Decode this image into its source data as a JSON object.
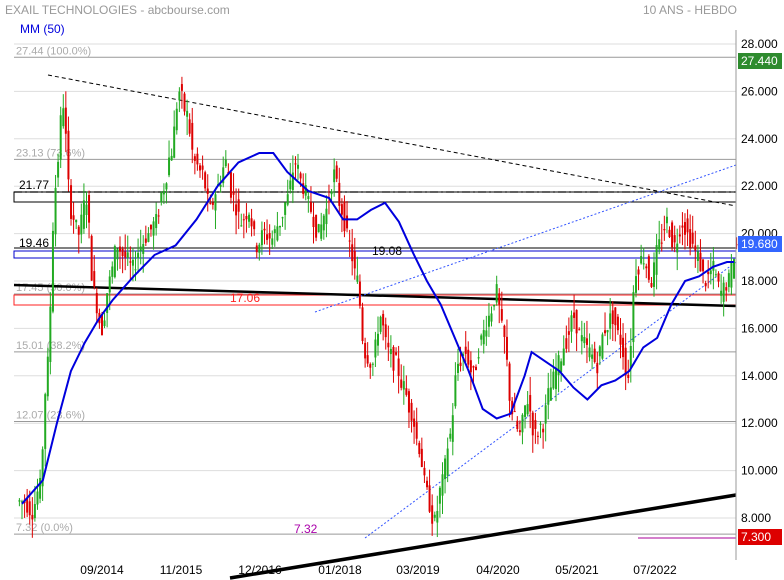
{
  "header": {
    "title": "EXAIL TECHNOLOGIES - abcbourse.com",
    "period": "10 ANS - HEBDO"
  },
  "indicator": {
    "label": "MM (50)"
  },
  "chart_data": {
    "type": "candlestick",
    "y_axis": {
      "ticks": [
        "28.000",
        "26.000",
        "24.000",
        "22.000",
        "20.000",
        "18.000",
        "16.000",
        "14.000",
        "12.000",
        "10.000",
        "8.000"
      ],
      "range": [
        7.2,
        28.6
      ]
    },
    "x_axis": {
      "ticks": [
        "09/2014",
        "11/2015",
        "12/2016",
        "01/2018",
        "03/2019",
        "04/2020",
        "05/2021",
        "07/2022"
      ]
    },
    "fibonacci_levels": [
      {
        "label": "27.44 (100.0%)",
        "value": 27.44
      },
      {
        "label": "23.13 (73.6%)",
        "value": 23.13
      },
      {
        "label": "17.45 (50.0%)",
        "value": 17.45
      },
      {
        "label": "15.01 (38.2%)",
        "value": 15.01
      },
      {
        "label": "12.07 (23.6%)",
        "value": 12.07
      },
      {
        "label": "7.32 (0.0%)",
        "value": 7.32
      }
    ],
    "horizontal_levels": [
      {
        "label": "21.77",
        "value": 21.77
      },
      {
        "label": "19.46",
        "value": 19.46
      },
      {
        "label": "19.08",
        "value": 19.08
      },
      {
        "label": "17.06",
        "value": 17.06
      },
      {
        "label": "7.32",
        "value": 7.32
      }
    ],
    "price_badges": [
      {
        "label": "27.440",
        "value": 27.44,
        "color": "#2e8b2e"
      },
      {
        "label": "19.680",
        "value": 19.68,
        "color": "#3366ff"
      },
      {
        "label": "7.300",
        "value": 7.3,
        "color": "#dd0000"
      }
    ],
    "series": [
      {
        "name": "MM (50)",
        "points": [
          [
            0,
            8.6
          ],
          [
            3,
            9.6
          ],
          [
            5,
            12.0
          ],
          [
            7,
            14.2
          ],
          [
            9,
            15.4
          ],
          [
            11,
            16.4
          ],
          [
            13,
            17.2
          ],
          [
            16,
            18.2
          ],
          [
            19,
            19.1
          ],
          [
            22,
            19.5
          ],
          [
            25,
            20.6
          ],
          [
            28,
            22.0
          ],
          [
            31,
            23.0
          ],
          [
            34,
            23.4
          ],
          [
            36,
            23.4
          ],
          [
            38,
            22.6
          ],
          [
            41,
            21.8
          ],
          [
            44,
            21.5
          ],
          [
            46,
            20.6
          ],
          [
            48,
            20.6
          ],
          [
            50,
            21.0
          ],
          [
            52,
            21.3
          ],
          [
            54,
            20.5
          ],
          [
            56,
            19.2
          ],
          [
            58,
            18.0
          ],
          [
            60,
            17.0
          ],
          [
            62,
            15.6
          ],
          [
            64,
            14.2
          ],
          [
            66,
            12.6
          ],
          [
            68,
            12.2
          ],
          [
            70,
            12.4
          ],
          [
            72,
            14.0
          ],
          [
            73,
            15.0
          ],
          [
            75,
            14.6
          ],
          [
            77,
            14.2
          ],
          [
            79,
            13.5
          ],
          [
            81,
            13.0
          ],
          [
            83,
            13.6
          ],
          [
            85,
            13.8
          ],
          [
            87,
            14.2
          ],
          [
            89,
            15.2
          ],
          [
            91,
            15.6
          ],
          [
            93,
            17.0
          ],
          [
            95,
            18.0
          ],
          [
            97,
            18.2
          ],
          [
            99,
            18.6
          ],
          [
            101,
            18.8
          ],
          [
            102,
            18.8
          ]
        ]
      },
      {
        "name": "price",
        "candles": [
          [
            0,
            8.7
          ],
          [
            1,
            8.3
          ],
          [
            2,
            9.3
          ],
          [
            3,
            14.5
          ],
          [
            4,
            22.0
          ],
          [
            5,
            25.5
          ],
          [
            6,
            21.0
          ],
          [
            7,
            20.0
          ],
          [
            8,
            21.5
          ],
          [
            9,
            17.5
          ],
          [
            10,
            16.0
          ],
          [
            11,
            18.0
          ],
          [
            12,
            19.5
          ],
          [
            13,
            19.0
          ],
          [
            14,
            18.5
          ],
          [
            15,
            19.5
          ],
          [
            16,
            20.0
          ],
          [
            17,
            20.5
          ],
          [
            18,
            22.0
          ],
          [
            19,
            23.5
          ],
          [
            20,
            26.0
          ],
          [
            21,
            25.0
          ],
          [
            22,
            23.0
          ],
          [
            23,
            22.5
          ],
          [
            24,
            21.0
          ],
          [
            25,
            22.0
          ],
          [
            26,
            23.0
          ],
          [
            27,
            21.5
          ],
          [
            28,
            20.5
          ],
          [
            29,
            21.0
          ],
          [
            30,
            19.5
          ],
          [
            31,
            20.0
          ],
          [
            32,
            19.8
          ],
          [
            33,
            20.5
          ],
          [
            34,
            21.5
          ],
          [
            35,
            23.0
          ],
          [
            36,
            22.0
          ],
          [
            37,
            21.0
          ],
          [
            38,
            20.0
          ],
          [
            39,
            21.0
          ],
          [
            40,
            22.5
          ],
          [
            41,
            21.0
          ],
          [
            42,
            19.5
          ],
          [
            43,
            18.0
          ],
          [
            44,
            15.0
          ],
          [
            45,
            14.5
          ],
          [
            46,
            16.5
          ],
          [
            47,
            15.0
          ],
          [
            48,
            14.5
          ],
          [
            49,
            13.5
          ],
          [
            50,
            12.5
          ],
          [
            51,
            11.0
          ],
          [
            52,
            9.0
          ],
          [
            53,
            7.8
          ],
          [
            54,
            9.5
          ],
          [
            55,
            11.5
          ],
          [
            56,
            14.5
          ],
          [
            57,
            15.0
          ],
          [
            58,
            14.0
          ],
          [
            59,
            15.5
          ],
          [
            60,
            16.5
          ],
          [
            61,
            17.5
          ],
          [
            62,
            15.5
          ],
          [
            63,
            12.5
          ],
          [
            64,
            11.5
          ],
          [
            65,
            13.0
          ],
          [
            66,
            11.5
          ],
          [
            67,
            12.0
          ],
          [
            68,
            13.5
          ],
          [
            69,
            14.5
          ],
          [
            70,
            15.5
          ],
          [
            71,
            16.5
          ],
          [
            72,
            15.5
          ],
          [
            73,
            15.0
          ],
          [
            74,
            14.5
          ],
          [
            75,
            16.0
          ],
          [
            76,
            16.5
          ],
          [
            77,
            15.5
          ],
          [
            78,
            14.0
          ],
          [
            79,
            18.5
          ],
          [
            80,
            19.0
          ],
          [
            81,
            18.0
          ],
          [
            82,
            19.5
          ],
          [
            83,
            20.5
          ],
          [
            84,
            19.5
          ],
          [
            85,
            20.5
          ],
          [
            86,
            19.8
          ],
          [
            87,
            19.0
          ],
          [
            88,
            18.0
          ],
          [
            89,
            18.5
          ],
          [
            90,
            17.5
          ],
          [
            91,
            18.0
          ],
          [
            92,
            19.5
          ]
        ]
      }
    ]
  }
}
